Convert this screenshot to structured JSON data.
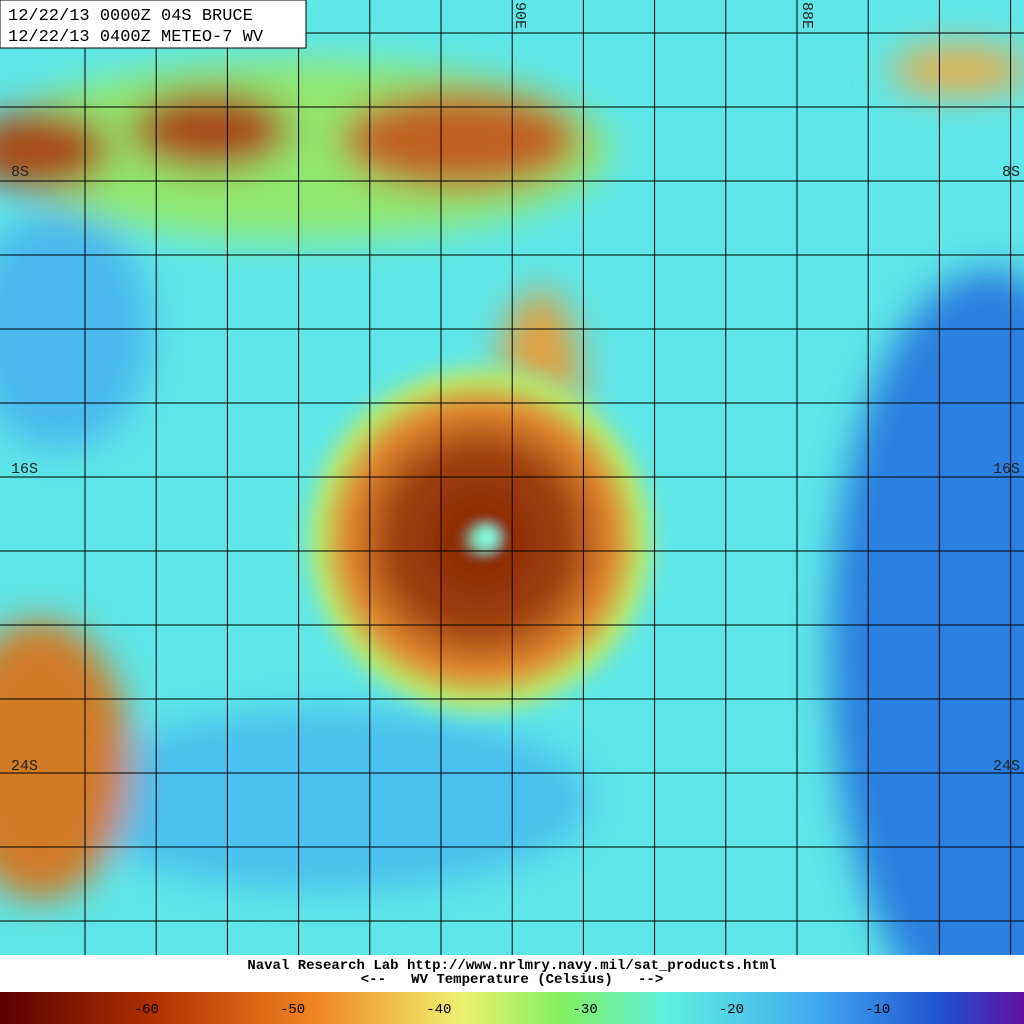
{
  "header": {
    "line1": "12/22/13 0000Z  04S BRUCE",
    "line2": "12/22/13 0400Z  METEO-7 WV"
  },
  "grid_labels": {
    "lon": [
      "90E",
      "88E"
    ],
    "lat_left": [
      "8S",
      "16S",
      "24S"
    ],
    "lat_right": [
      "8S",
      "16S",
      "24S"
    ]
  },
  "footer": {
    "credit": "Naval Research Lab http://www.nrlmry.navy.mil/sat_products.html",
    "caption": "<--   WV Temperature (Celsius)   -->"
  },
  "colorbar": {
    "range": [
      -70,
      0
    ],
    "ticks": [
      -60,
      -50,
      -40,
      -30,
      -20,
      -10
    ]
  }
}
